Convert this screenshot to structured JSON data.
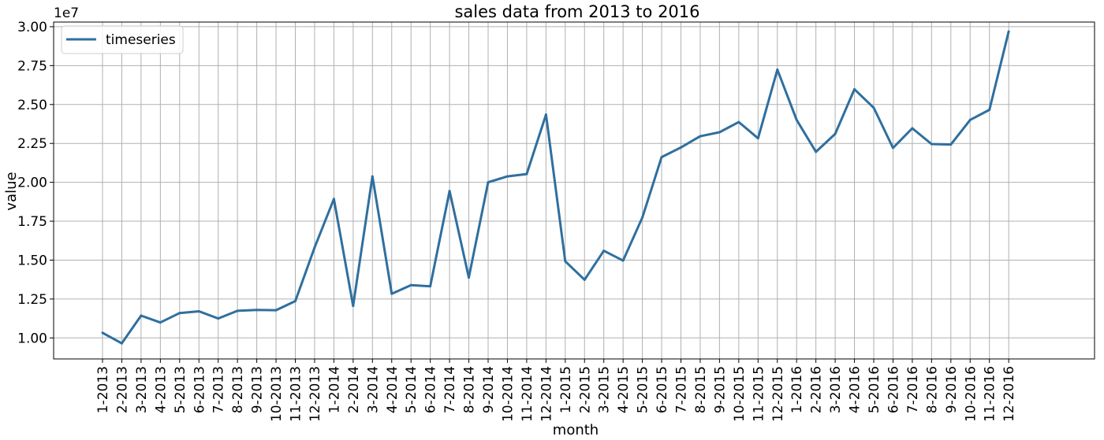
{
  "chart_data": {
    "type": "line",
    "title": "sales data from 2013 to 2016",
    "xlabel": "month",
    "ylabel": "value",
    "y_offset_label": "1e7",
    "ylim": [
      8650000,
      30300000
    ],
    "yticks": [
      10000000,
      12500000,
      15000000,
      17500000,
      20000000,
      22500000,
      25000000,
      27500000,
      30000000
    ],
    "ytick_labels": [
      "1.00",
      "1.25",
      "1.50",
      "1.75",
      "2.00",
      "2.25",
      "2.50",
      "2.75",
      "3.00"
    ],
    "grid": true,
    "legend": {
      "placement": "upper-left",
      "entries": [
        "timeseries"
      ]
    },
    "color": "#2f6f9f",
    "categories": [
      "1-2013",
      "2-2013",
      "3-2013",
      "4-2013",
      "5-2013",
      "6-2013",
      "7-2013",
      "8-2013",
      "9-2013",
      "10-2013",
      "11-2013",
      "12-2013",
      "1-2014",
      "2-2014",
      "3-2014",
      "4-2014",
      "5-2014",
      "6-2014",
      "7-2014",
      "8-2014",
      "9-2014",
      "10-2014",
      "11-2014",
      "12-2014",
      "1-2015",
      "2-2015",
      "3-2015",
      "4-2015",
      "5-2015",
      "6-2015",
      "7-2015",
      "8-2015",
      "9-2015",
      "10-2015",
      "11-2015",
      "12-2015",
      "1-2016",
      "2-2016",
      "3-2016",
      "4-2016",
      "5-2016",
      "6-2016",
      "7-2016",
      "8-2016",
      "9-2016",
      "10-2016",
      "11-2016",
      "12-2016"
    ],
    "series": [
      {
        "name": "timeseries",
        "values": [
          10330000,
          9650000,
          11430000,
          10990000,
          11600000,
          11710000,
          11250000,
          11740000,
          11800000,
          11780000,
          12370000,
          15810000,
          18930000,
          12060000,
          20380000,
          12840000,
          13390000,
          13320000,
          19440000,
          13880000,
          20000000,
          20380000,
          20530000,
          24350000,
          14930000,
          13740000,
          15600000,
          14970000,
          17740000,
          21620000,
          22240000,
          22960000,
          23220000,
          23870000,
          22830000,
          27240000,
          24010000,
          21960000,
          23110000,
          25980000,
          24790000,
          22210000,
          23470000,
          22460000,
          22430000,
          24010000,
          24660000,
          29690000
        ]
      }
    ]
  }
}
